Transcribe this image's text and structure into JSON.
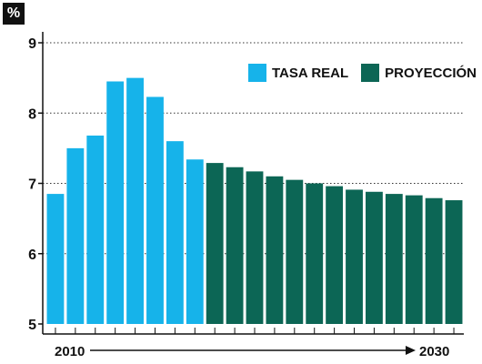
{
  "chart_data": {
    "type": "bar",
    "unit": "%",
    "ylim": [
      5,
      9
    ],
    "yticks": [
      "5",
      "6",
      "7",
      "8",
      "9"
    ],
    "grid": true,
    "legend_position": "top-right",
    "x_start_label": "2010",
    "x_end_label": "2030",
    "categories": [
      "2010",
      "2011",
      "2012",
      "2013",
      "2014",
      "2015",
      "2016",
      "2017",
      "2018",
      "2019",
      "2020",
      "2021",
      "2022",
      "2023",
      "2024",
      "2025",
      "2026",
      "2027",
      "2028",
      "2029",
      "2030"
    ],
    "series": [
      {
        "name": "TASA REAL",
        "color": "#16b3ea",
        "values": [
          6.85,
          7.5,
          7.68,
          8.45,
          8.5,
          8.23,
          7.6,
          7.34,
          null,
          null,
          null,
          null,
          null,
          null,
          null,
          null,
          null,
          null,
          null,
          null,
          null
        ]
      },
      {
        "name": "PROYECCIÓN",
        "color": "#0c6655",
        "values": [
          null,
          null,
          null,
          null,
          null,
          null,
          null,
          null,
          7.29,
          7.23,
          7.17,
          7.1,
          7.05,
          7.0,
          6.96,
          6.91,
          6.88,
          6.85,
          6.83,
          6.79,
          6.76
        ]
      }
    ]
  }
}
